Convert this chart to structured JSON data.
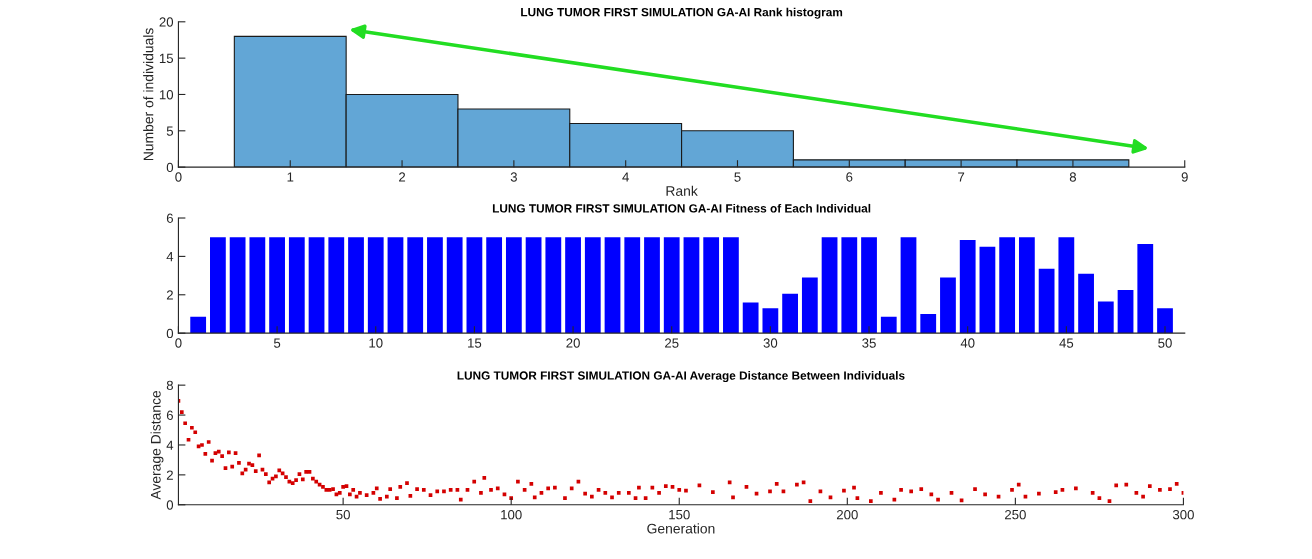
{
  "chart_data": [
    {
      "type": "histogram",
      "title": "LUNG TUMOR FIRST SIMULATION GA-AI Rank histogram",
      "xlabel": "Rank",
      "ylabel": "Number of individuals",
      "bins": [
        0.5,
        1.5,
        2.5,
        3.5,
        4.5,
        5.5,
        6.5,
        7.5,
        8.5
      ],
      "values": [
        18,
        10,
        8,
        6,
        5,
        1,
        1,
        1
      ],
      "color": "#62a6d6",
      "xlim": [
        0,
        9
      ],
      "xticks": [
        0,
        1,
        2,
        3,
        4,
        5,
        6,
        7,
        8,
        9
      ],
      "ylim": [
        0,
        20
      ],
      "yticks": [
        0,
        5,
        10,
        15,
        20
      ]
    },
    {
      "type": "bar",
      "title": "LUNG TUMOR FIRST SIMULATION GA-AI Fitness of Each Individual",
      "x": [
        1,
        2,
        3,
        4,
        5,
        6,
        7,
        8,
        9,
        10,
        11,
        12,
        13,
        14,
        15,
        16,
        17,
        18,
        19,
        20,
        21,
        22,
        23,
        24,
        25,
        26,
        27,
        28,
        29,
        30,
        31,
        32,
        33,
        34,
        35,
        36,
        37,
        38,
        39,
        40,
        41,
        42,
        43,
        44,
        45,
        46,
        47,
        48,
        49,
        50
      ],
      "values": [
        0.85,
        5,
        5,
        5,
        5,
        5,
        5,
        5,
        5,
        5,
        5,
        5,
        5,
        5,
        5,
        5,
        5,
        5,
        5,
        5,
        5,
        5,
        5,
        5,
        5,
        5,
        5,
        5,
        1.6,
        1.3,
        2.05,
        2.9,
        5,
        5,
        5,
        0.85,
        5,
        1.0,
        2.9,
        4.85,
        4.5,
        5,
        5,
        3.35,
        5,
        3.1,
        1.65,
        2.25,
        4.65,
        1.3
      ],
      "color": "#0000ff",
      "xlim": [
        0,
        51
      ],
      "xticks": [
        0,
        5,
        10,
        15,
        20,
        25,
        30,
        35,
        40,
        45,
        50
      ],
      "ylim": [
        0,
        6
      ],
      "yticks": [
        0,
        2,
        4,
        6
      ]
    },
    {
      "type": "scatter",
      "title": "LUNG TUMOR FIRST SIMULATION GA-AI Average Distance Between Individuals",
      "xlabel": "Generation",
      "ylabel": "Average Distance",
      "marker": "square",
      "x": [
        1,
        2,
        3,
        4,
        5,
        6,
        7,
        8,
        9,
        10,
        11,
        12,
        13,
        14,
        15,
        16,
        17,
        18,
        19,
        20,
        21,
        22,
        23,
        24,
        25,
        26,
        27,
        28,
        29,
        30,
        31,
        32,
        33,
        34,
        35,
        36,
        37,
        38,
        39,
        40,
        41,
        42,
        43,
        44,
        45,
        46,
        47,
        48,
        49,
        50,
        51,
        52,
        53,
        54,
        55,
        57,
        59,
        60,
        61,
        63,
        64,
        66,
        67,
        69,
        70,
        72,
        74,
        76,
        78,
        80,
        82,
        84,
        85,
        87,
        89,
        91,
        92,
        94,
        96,
        98,
        100,
        102,
        104,
        106,
        107,
        109,
        111,
        113,
        116,
        118,
        120,
        122,
        124,
        126,
        128,
        130,
        132,
        135,
        137,
        138,
        140,
        142,
        144,
        146,
        148,
        150,
        152,
        156,
        160,
        165,
        166,
        170,
        173,
        177,
        179,
        181,
        185,
        187,
        189,
        192,
        195,
        199,
        202,
        203,
        207,
        210,
        214,
        216,
        219,
        222,
        225,
        227,
        231,
        234,
        238,
        241,
        245,
        249,
        251,
        253,
        257,
        262,
        264,
        268,
        273,
        275,
        278,
        280,
        283,
        286,
        288,
        290,
        293,
        296,
        298,
        300
      ],
      "values": [
        6.95,
        6.2,
        5.45,
        4.35,
        5.15,
        4.85,
        3.9,
        4.0,
        3.4,
        4.2,
        2.95,
        3.45,
        3.55,
        3.25,
        2.45,
        3.5,
        2.55,
        3.45,
        2.8,
        2.1,
        2.35,
        2.75,
        2.65,
        2.25,
        3.3,
        2.35,
        2.05,
        1.5,
        1.75,
        1.9,
        2.3,
        2.1,
        1.85,
        1.55,
        1.45,
        1.65,
        2.05,
        1.7,
        2.2,
        2.2,
        1.75,
        1.55,
        1.35,
        1.2,
        1.0,
        1.0,
        1.05,
        0.7,
        0.8,
        1.2,
        1.25,
        0.7,
        1.0,
        0.55,
        0.8,
        0.65,
        0.8,
        1.1,
        0.4,
        0.55,
        1.05,
        0.45,
        1.2,
        1.45,
        0.6,
        1.05,
        1.0,
        0.65,
        0.9,
        0.9,
        1.0,
        1.0,
        0.35,
        1.0,
        1.55,
        0.8,
        1.8,
        1.0,
        1.1,
        0.7,
        0.45,
        1.55,
        1.0,
        1.4,
        0.5,
        0.8,
        1.1,
        1.15,
        0.45,
        1.1,
        1.55,
        0.75,
        0.55,
        1.0,
        0.8,
        0.5,
        0.8,
        0.8,
        0.45,
        1.15,
        0.45,
        1.15,
        0.8,
        1.25,
        1.2,
        1.0,
        0.95,
        1.3,
        0.85,
        1.5,
        0.5,
        1.2,
        0.75,
        0.9,
        1.4,
        0.9,
        1.35,
        1.5,
        0.25,
        0.9,
        0.5,
        0.95,
        1.15,
        0.45,
        0.25,
        0.8,
        0.35,
        1.0,
        0.9,
        1.05,
        0.7,
        0.35,
        0.8,
        0.3,
        1.05,
        0.7,
        0.55,
        1.0,
        1.35,
        0.55,
        0.75,
        0.85,
        1.0,
        1.1,
        0.8,
        0.45,
        0.25,
        1.3,
        1.35,
        0.8,
        0.55,
        1.25,
        1.0,
        1.05,
        1.4,
        0.8
      ],
      "color": "#d40000",
      "xlim": [
        1,
        300
      ],
      "xticks": [
        50,
        100,
        150,
        200,
        250,
        300
      ],
      "ylim": [
        0,
        8
      ],
      "yticks": [
        0,
        2,
        4,
        6,
        8
      ]
    }
  ]
}
